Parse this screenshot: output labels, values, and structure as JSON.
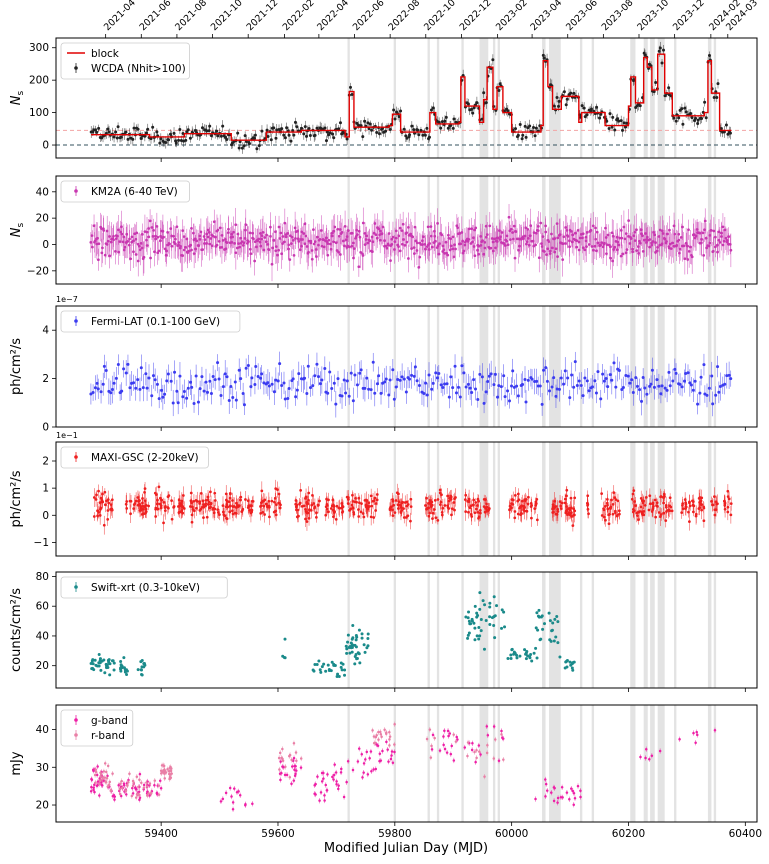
{
  "chart_data": {
    "type": "multi-panel time series",
    "xlabel": "Modified Julian Day (MJD)",
    "xlim": [
      59220,
      60420
    ],
    "x_ticks": [
      59400,
      59600,
      59800,
      60000,
      60200,
      60400
    ],
    "top_date_axis": [
      {
        "label": "2021-04",
        "mjd": 59305
      },
      {
        "label": "2021-06",
        "mjd": 59366
      },
      {
        "label": "2021-08",
        "mjd": 59427
      },
      {
        "label": "2021-10",
        "mjd": 59488
      },
      {
        "label": "2021-12",
        "mjd": 59549
      },
      {
        "label": "2022-02",
        "mjd": 59611
      },
      {
        "label": "2022-04",
        "mjd": 59670
      },
      {
        "label": "2022-06",
        "mjd": 59731
      },
      {
        "label": "2022-08",
        "mjd": 59792
      },
      {
        "label": "2022-10",
        "mjd": 59853
      },
      {
        "label": "2022-12",
        "mjd": 59914
      },
      {
        "label": "2023-02",
        "mjd": 59976
      },
      {
        "label": "2023-04",
        "mjd": 60035
      },
      {
        "label": "2023-06",
        "mjd": 60096
      },
      {
        "label": "2023-08",
        "mjd": 60157
      },
      {
        "label": "2023-10",
        "mjd": 60218
      },
      {
        "label": "2023-12",
        "mjd": 60279
      },
      {
        "label": "2024-02",
        "mjd": 60341
      },
      {
        "label": "2024-03",
        "mjd": 60370
      }
    ],
    "shaded_intervals_mjd": [
      [
        59719,
        59723
      ],
      [
        59798,
        59802
      ],
      [
        59856,
        59860
      ],
      [
        59872,
        59876
      ],
      [
        59914,
        59918
      ],
      [
        59945,
        59960
      ],
      [
        59968,
        59972
      ],
      [
        59976,
        59980
      ],
      [
        60052,
        60058
      ],
      [
        60064,
        60084
      ],
      [
        60117,
        60121
      ],
      [
        60137,
        60141
      ],
      [
        60203,
        60212
      ],
      [
        60226,
        60233
      ],
      [
        60237,
        60245
      ],
      [
        60250,
        60262
      ],
      [
        60278,
        60282
      ],
      [
        60336,
        60342
      ],
      [
        60346,
        60350
      ]
    ],
    "panels": [
      {
        "id": "wcda",
        "ylabel": "N",
        "ylabel_sub": "s",
        "ylim": [
          -40,
          330
        ],
        "yticks": [
          0,
          100,
          200,
          300
        ],
        "ytick_labels": [
          "0",
          "100",
          "200",
          "300"
        ],
        "hlines": [
          {
            "y": 0,
            "style": "dashed",
            "color": "#33505e"
          },
          {
            "y": 45,
            "style": "dashed",
            "color": "#f3a4a4"
          }
        ],
        "legend": [
          "block",
          "WCDA (Nhit>100)"
        ],
        "legend_colors": [
          "#e00000",
          "#222222"
        ],
        "series": [
          {
            "name": "block",
            "kind": "step",
            "color": "#e00000",
            "x": [
              59280,
              59380,
              59440,
              59520,
              59580,
              59640,
              59715,
              59722,
              59730,
              59790,
              59796,
              59810,
              59860,
              59870,
              59910,
              59913,
              59920,
              59945,
              59952,
              59958,
              59968,
              59975,
              59985,
              60000,
              60050,
              60054,
              60062,
              60070,
              60085,
              60115,
              60120,
              60160,
              60200,
              60204,
              60212,
              60226,
              60232,
              60240,
              60250,
              60262,
              60275,
              60330,
              60336,
              60342,
              60356,
              60370
            ],
            "values": [
              32,
              25,
              35,
              15,
              40,
              45,
              25,
              165,
              55,
              60,
              95,
              40,
              100,
              65,
              70,
              210,
              120,
              70,
              140,
              240,
              110,
              180,
              100,
              40,
              60,
              260,
              180,
              110,
              150,
              70,
              100,
              60,
              120,
              210,
              130,
              270,
              240,
              170,
              280,
              160,
              90,
              100,
              260,
              160,
              45,
              45
            ]
          },
          {
            "name": "WCDA (Nhit>100)",
            "kind": "errorbar",
            "color": "#222222",
            "marker_size": 2.4,
            "x_range": [
              59280,
              60375
            ],
            "mean_profile": "block",
            "scatter": 18,
            "err": 15,
            "n": 420
          }
        ]
      },
      {
        "id": "km2a",
        "ylabel": "N",
        "ylabel_sub": "s",
        "ylim": [
          -30,
          52
        ],
        "yticks": [
          -20,
          0,
          20,
          40
        ],
        "ytick_labels": [
          "−20",
          "0",
          "20",
          "40"
        ],
        "legend": [
          "KM2A (6-40 TeV)"
        ],
        "legend_colors": [
          "#c837b0"
        ],
        "series": [
          {
            "name": "KM2A (6-40 TeV)",
            "kind": "errorbar",
            "color": "#c837b0",
            "marker_size": 2.2,
            "x_range": [
              59280,
              60375
            ],
            "mean": 3,
            "scatter": 9,
            "err": 10,
            "n": 780
          }
        ]
      },
      {
        "id": "fermi",
        "ylabel": "ph/cm²/s",
        "exponent": "1e−7",
        "ylim": [
          0,
          5.0
        ],
        "yticks": [
          0,
          2,
          4
        ],
        "ytick_labels": [
          "0",
          "2",
          "4"
        ],
        "legend": [
          "Fermi-LAT (0.1-100 GeV)"
        ],
        "legend_colors": [
          "#3b3bf0"
        ],
        "series": [
          {
            "name": "Fermi-LAT (0.1-100 GeV)",
            "kind": "errorbar",
            "color": "#3b3bf0",
            "marker_size": 2.4,
            "x_range": [
              59280,
              60375
            ],
            "mean": 1.8,
            "scatter": 0.55,
            "err": 0.45,
            "n": 330
          }
        ]
      },
      {
        "id": "maxi",
        "ylabel": "ph/cm²/s",
        "exponent": "1e−1",
        "ylim": [
          -1.5,
          2.7
        ],
        "yticks": [
          -1,
          0,
          1,
          2
        ],
        "ytick_labels": [
          "−1",
          "0",
          "1",
          "2"
        ],
        "legend": [
          "MAXI-GSC (2-20keV)"
        ],
        "legend_colors": [
          "#ee2020"
        ],
        "series": [
          {
            "name": "MAXI-GSC (2-20keV)",
            "kind": "errorbar",
            "color": "#ee2020",
            "marker_size": 2.2,
            "segments": [
              [
                59285,
                59320
              ],
              [
                59340,
                59380
              ],
              [
                59390,
                59440
              ],
              [
                59450,
                59500
              ],
              [
                59505,
                59560
              ],
              [
                59570,
                59605
              ],
              [
                59628,
                59672
              ],
              [
                59680,
                59712
              ],
              [
                59718,
                59770
              ],
              [
                59790,
                59830
              ],
              [
                59852,
                59905
              ],
              [
                59920,
                59962
              ],
              [
                59995,
                60045
              ],
              [
                60065,
                60110
              ],
              [
                60127,
                60135
              ],
              [
                60152,
                60185
              ],
              [
                60205,
                60275
              ],
              [
                60290,
                60330
              ],
              [
                60342,
                60353
              ],
              [
                60362,
                60376
              ]
            ],
            "mean": 0.35,
            "scatter": 0.35,
            "err": 0.25
          }
        ]
      },
      {
        "id": "swift",
        "ylabel": "counts/cm²/s",
        "ylim": [
          5,
          83
        ],
        "yticks": [
          20,
          40,
          60,
          80
        ],
        "ytick_labels": [
          "20",
          "40",
          "60",
          "80"
        ],
        "legend": [
          "Swift-xrt (0.3-10keV)"
        ],
        "legend_colors": [
          "#1a8a8a"
        ],
        "series": [
          {
            "name": "Swift-xrt (0.3-10keV)",
            "kind": "scatter",
            "color": "#1a8a8a",
            "marker_size": 2.4,
            "clusters": [
              {
                "x": [
                  59280,
                  59320
                ],
                "mean": 20,
                "scatter": 4,
                "n": 34
              },
              {
                "x": [
                  59330,
                  59345
                ],
                "mean": 19,
                "scatter": 3,
                "n": 18
              },
              {
                "x": [
                  59360,
                  59375
                ],
                "mean": 18,
                "scatter": 4,
                "n": 12
              },
              {
                "x": [
                  59607,
                  59615
                ],
                "mean": 28,
                "scatter": 7,
                "n": 4
              },
              {
                "x": [
                  59660,
                  59715
                ],
                "mean": 18,
                "scatter": 5,
                "n": 28
              },
              {
                "x": [
                  59715,
                  59755
                ],
                "mean": 34,
                "scatter": 7,
                "n": 40
              },
              {
                "x": [
                  59920,
                  59990
                ],
                "mean": 50,
                "scatter": 12,
                "n": 45
              },
              {
                "x": [
                  59990,
                  60040
                ],
                "mean": 27,
                "scatter": 4,
                "n": 22
              },
              {
                "x": [
                  60040,
                  60085
                ],
                "mean": 45,
                "scatter": 12,
                "n": 28
              },
              {
                "x": [
                  60090,
                  60110
                ],
                "mean": 21,
                "scatter": 3,
                "n": 12
              }
            ]
          }
        ]
      },
      {
        "id": "optical",
        "ylabel": "mJy",
        "ylim": [
          15.5,
          46.5
        ],
        "yticks": [
          20,
          30,
          40
        ],
        "ytick_labels": [
          "20",
          "30",
          "40"
        ],
        "legend": [
          "g-band",
          "r-band"
        ],
        "legend_colors": [
          "#ee1fa6",
          "#e97fa6"
        ],
        "series": [
          {
            "name": "g-band",
            "kind": "errorbar",
            "color": "#ee1fa6",
            "marker_size": 2.0,
            "clusters": [
              {
                "x": [
                  59280,
                  59310
                ],
                "mean": 26,
                "scatter": 3,
                "n": 30
              },
              {
                "x": [
                  59310,
                  59400
                ],
                "mean": 24,
                "scatter": 2.5,
                "n": 50
              },
              {
                "x": [
                  59500,
                  59560
                ],
                "mean": 22,
                "scatter": 3,
                "n": 14
              },
              {
                "x": [
                  59600,
                  59640
                ],
                "mean": 30,
                "scatter": 3,
                "n": 20
              },
              {
                "x": [
                  59660,
                  59720
                ],
                "mean": 26,
                "scatter": 3,
                "n": 30
              },
              {
                "x": [
                  59720,
                  59800
                ],
                "mean": 32,
                "scatter": 4,
                "n": 30
              },
              {
                "x": [
                  59855,
                  59990
                ],
                "mean": 37,
                "scatter": 4,
                "n": 30
              },
              {
                "x": [
                  60040,
                  60120
                ],
                "mean": 23,
                "scatter": 2,
                "n": 24
              },
              {
                "x": [
                  60220,
                  60260
                ],
                "mean": 33,
                "scatter": 2,
                "n": 6
              },
              {
                "x": [
                  60280,
                  60350
                ],
                "mean": 38,
                "scatter": 3,
                "n": 6
              }
            ]
          },
          {
            "name": "r-band",
            "kind": "errorbar",
            "color": "#e97fa6",
            "marker_size": 2.0,
            "clusters": [
              {
                "x": [
                  59285,
                  59310
                ],
                "mean": 28,
                "scatter": 3,
                "n": 20
              },
              {
                "x": [
                  59310,
                  59400
                ],
                "mean": 25,
                "scatter": 2.5,
                "n": 40
              },
              {
                "x": [
                  59400,
                  59420
                ],
                "mean": 29,
                "scatter": 1.5,
                "n": 30
              },
              {
                "x": [
                  59600,
                  59640
                ],
                "mean": 32,
                "scatter": 3,
                "n": 16
              },
              {
                "x": [
                  59760,
                  59800
                ],
                "mean": 38,
                "scatter": 2,
                "n": 20
              },
              {
                "x": [
                  59855,
                  59990
                ],
                "mean": 36,
                "scatter": 4,
                "n": 20
              }
            ]
          }
        ]
      }
    ]
  }
}
